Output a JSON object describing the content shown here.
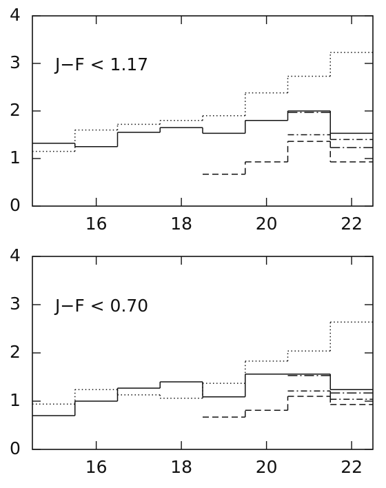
{
  "chart_data": [
    {
      "type": "histogram",
      "annotation": "J−F < 1.17",
      "bins": [
        14.5,
        15.5,
        16.5,
        17.5,
        18.5,
        19.5,
        20.5,
        21.5,
        22.5
      ],
      "xlim": [
        14.5,
        22.5
      ],
      "ylim": [
        0,
        4
      ],
      "xticks": [
        16,
        18,
        20,
        22
      ],
      "yticks": [
        0,
        1,
        2,
        3,
        4
      ],
      "series": [
        {
          "color": "#111111",
          "dash": "solid",
          "values": [
            1.32,
            1.25,
            1.55,
            1.65,
            1.53,
            1.8,
            2.0,
            1.53
          ]
        },
        {
          "color": "#111111",
          "dash": "dotted",
          "values": [
            1.15,
            1.6,
            1.72,
            1.8,
            1.9,
            2.38,
            2.73,
            3.23
          ]
        },
        {
          "color": "#111111",
          "dash": "dashed",
          "values": [
            null,
            null,
            null,
            null,
            0.67,
            0.93,
            1.36,
            0.93
          ]
        },
        {
          "color": "#111111",
          "dash": "dashdot",
          "values": [
            null,
            null,
            null,
            null,
            null,
            null,
            1.5,
            1.4
          ]
        },
        {
          "color": "#111111",
          "dash": "longdashdot",
          "values": [
            null,
            null,
            null,
            null,
            null,
            null,
            1.97,
            1.23
          ]
        }
      ]
    },
    {
      "type": "histogram",
      "annotation": "J−F < 0.70",
      "bins": [
        14.5,
        15.5,
        16.5,
        17.5,
        18.5,
        19.5,
        20.5,
        21.5,
        22.5
      ],
      "xlim": [
        14.5,
        22.5
      ],
      "ylim": [
        0,
        4
      ],
      "xticks": [
        16,
        18,
        20,
        22
      ],
      "yticks": [
        0,
        1,
        2,
        3,
        4
      ],
      "series": [
        {
          "color": "#111111",
          "dash": "solid",
          "values": [
            0.7,
            1.0,
            1.27,
            1.4,
            1.09,
            1.56,
            1.56,
            1.24
          ]
        },
        {
          "color": "#111111",
          "dash": "dotted",
          "values": [
            0.94,
            1.24,
            1.13,
            1.06,
            1.37,
            1.83,
            2.04,
            2.64
          ]
        },
        {
          "color": "#111111",
          "dash": "dashed",
          "values": [
            null,
            null,
            null,
            null,
            0.67,
            0.81,
            1.1,
            0.93
          ]
        },
        {
          "color": "#111111",
          "dash": "dashdot",
          "values": [
            null,
            null,
            null,
            null,
            null,
            null,
            1.21,
            1.04
          ]
        },
        {
          "color": "#111111",
          "dash": "longdashdot",
          "values": [
            null,
            null,
            null,
            null,
            null,
            null,
            1.53,
            1.17
          ]
        }
      ]
    }
  ]
}
